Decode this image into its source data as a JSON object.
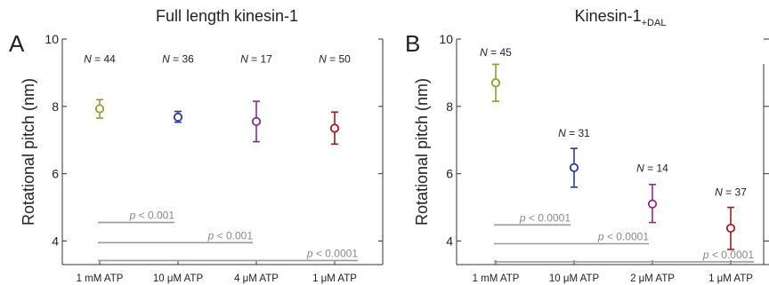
{
  "chart_data": [
    {
      "type": "scatter",
      "panel_letter": "A",
      "title": "Full length kinesin-1",
      "title_sub": "",
      "ylabel": "Rotational pitch (nm)",
      "ylim": [
        3.3,
        10
      ],
      "yticks": [
        4,
        6,
        8,
        10
      ],
      "categories": [
        "1 mM ATP",
        "10 μM ATP",
        "4 μM ATP",
        "1 μM ATP"
      ],
      "values": [
        7.93,
        7.68,
        7.55,
        7.35
      ],
      "err_low": [
        7.65,
        7.53,
        6.95,
        6.88
      ],
      "err_high": [
        8.2,
        7.85,
        8.15,
        7.83
      ],
      "colors": [
        "#9a9a2c",
        "#2e3a8c",
        "#8e2c8e",
        "#a01e1e"
      ],
      "n_labels": [
        {
          "prefix": "N",
          "text": " = 44"
        },
        {
          "prefix": "N",
          "text": " = 36"
        },
        {
          "prefix": "N",
          "text": " = 17"
        },
        {
          "prefix": "N",
          "text": " = 50"
        }
      ],
      "n_label_y": [
        9.3,
        9.3,
        9.3,
        9.3
      ],
      "significance": [
        {
          "from": 0,
          "to": 1,
          "y": 4.55,
          "prefix": "p",
          "text": " < 0.001"
        },
        {
          "from": 0,
          "to": 2,
          "y": 3.95,
          "prefix": "p",
          "text": " < 0.001"
        },
        {
          "from": 0,
          "to": 3,
          "y": 3.42,
          "prefix": "p",
          "text": " < 0.0001"
        }
      ]
    },
    {
      "type": "scatter",
      "panel_letter": "B",
      "title": "Kinesin-1",
      "title_sub": "+DAL",
      "ylabel": "Rotational pitch (nm)",
      "ylim": [
        3.3,
        10
      ],
      "yticks": [
        4,
        6,
        8,
        10
      ],
      "categories": [
        "1 mM ATP",
        "10 μM ATP",
        "2 μM ATP",
        "1 μM ATP"
      ],
      "values": [
        8.7,
        6.18,
        5.1,
        4.38
      ],
      "err_low": [
        8.15,
        5.6,
        4.55,
        3.75
      ],
      "err_high": [
        9.25,
        6.75,
        5.68,
        5.0
      ],
      "colors": [
        "#9a9a2c",
        "#2e3a8c",
        "#8e2c8e",
        "#a01e1e"
      ],
      "n_labels": [
        {
          "prefix": "N",
          "text": " = 45"
        },
        {
          "prefix": "N",
          "text": " = 31"
        },
        {
          "prefix": "N",
          "text": " = 14"
        },
        {
          "prefix": "N",
          "text": " = 37"
        }
      ],
      "n_label_y": [
        9.5,
        7.1,
        6.05,
        5.35
      ],
      "significance": [
        {
          "from": 0,
          "to": 1,
          "y": 4.48,
          "prefix": "p",
          "text": " < 0.0001"
        },
        {
          "from": 0,
          "to": 2,
          "y": 3.92,
          "prefix": "p",
          "text": " < 0.0001"
        },
        {
          "from": 0,
          "to": 3,
          "y": 3.38,
          "prefix": "p",
          "text": " < 0.0001"
        }
      ]
    }
  ]
}
